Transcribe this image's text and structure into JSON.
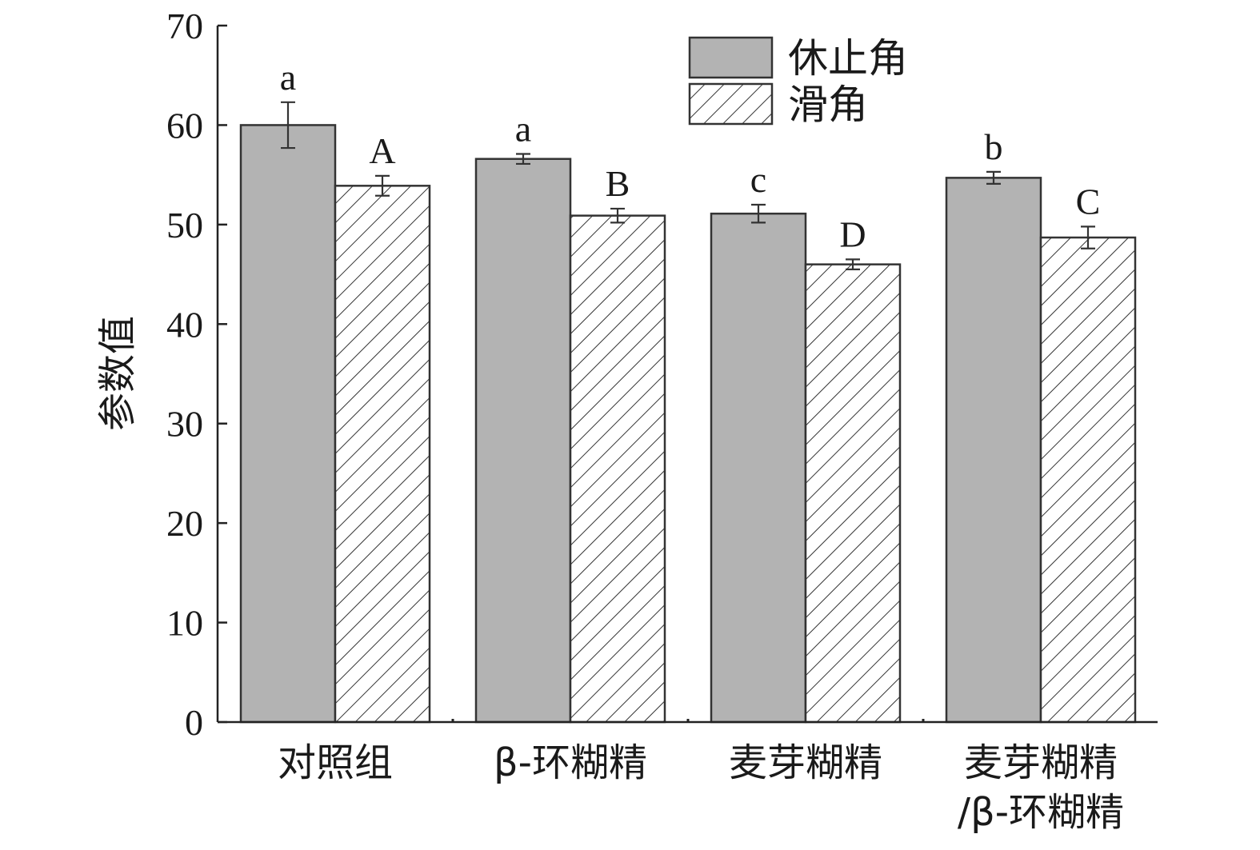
{
  "chart_data": {
    "type": "bar",
    "y_label": "参数值",
    "categories": [
      "对照组",
      "β-环糊精",
      "麦芽糊精",
      "麦芽糊精/β-环糊精"
    ],
    "series": [
      {
        "name": "休止角",
        "color": "#b3b3b3",
        "hatch": false,
        "values": [
          60.0,
          56.6,
          51.1,
          54.7
        ],
        "errors": [
          2.3,
          0.5,
          0.9,
          0.6
        ],
        "letters": [
          "a",
          "a",
          "c",
          "b"
        ]
      },
      {
        "name": "滑角",
        "color": "#ffffff",
        "hatch": true,
        "values": [
          53.9,
          50.9,
          46.0,
          48.7
        ],
        "errors": [
          1.0,
          0.7,
          0.5,
          1.1
        ],
        "letters": [
          "A",
          "B",
          "D",
          "C"
        ]
      }
    ],
    "ylim": [
      0,
      70
    ],
    "yticks": [
      0,
      10,
      20,
      30,
      40,
      50,
      60,
      70
    ]
  }
}
